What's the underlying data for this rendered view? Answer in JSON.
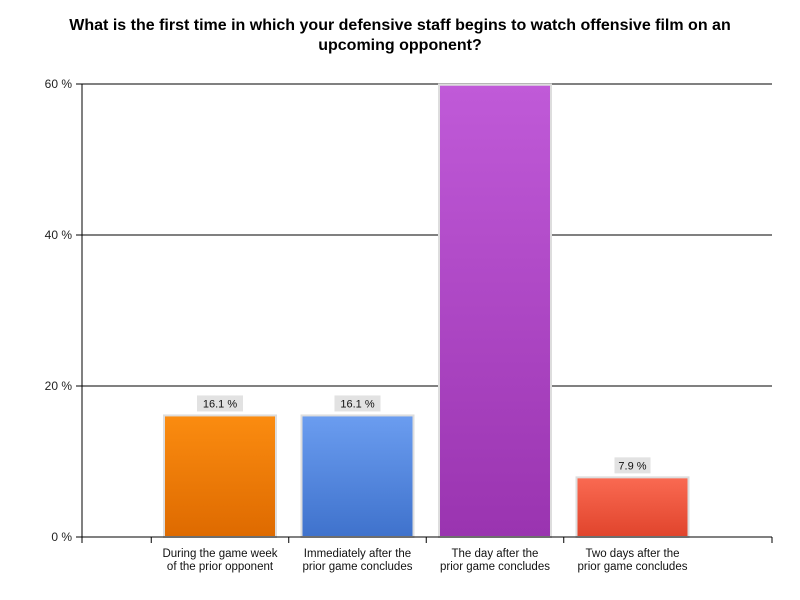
{
  "chart_data": {
    "type": "bar",
    "title": "What is the first time in which your defensive staff begins to watch offensive film on an upcoming opponent?",
    "categories": [
      [
        "During the game week",
        "of the prior opponent"
      ],
      [
        "Immediately after the",
        "prior game concludes"
      ],
      [
        "The day after the",
        "prior game concludes"
      ],
      [
        "Two days after the",
        "prior game concludes"
      ]
    ],
    "values": [
      16.1,
      16.1,
      59.9,
      7.9
    ],
    "data_labels": [
      "16.1 %",
      "16.1 %",
      "",
      "7.9 %"
    ],
    "y_ticks": [
      {
        "value": 0,
        "label": "0 %"
      },
      {
        "value": 20,
        "label": "20 %"
      },
      {
        "value": 40,
        "label": "40 %"
      },
      {
        "value": 60,
        "label": "60 %"
      }
    ],
    "ylim": [
      0,
      60
    ],
    "grid": true,
    "colors": [
      [
        "#fb8c10",
        "#de6a00"
      ],
      [
        "#6b9df0",
        "#3f72cc"
      ],
      [
        "#c05ad8",
        "#9a34b0"
      ],
      [
        "#fa6a52",
        "#e0442c"
      ]
    ]
  }
}
